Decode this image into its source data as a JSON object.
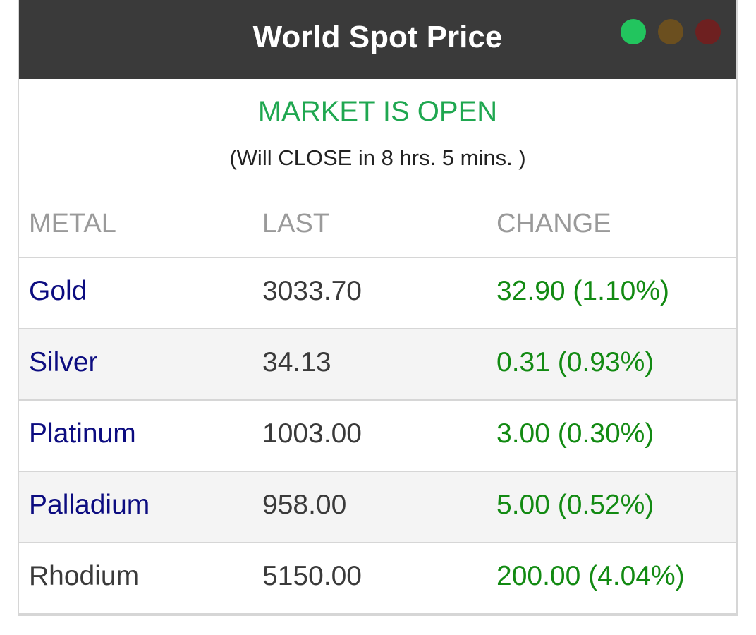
{
  "header": {
    "title": "World Spot Price",
    "status_dots": [
      {
        "name": "green-status-dot",
        "color": "#22c55e"
      },
      {
        "name": "amber-status-dot",
        "color": "#6b4f1f"
      },
      {
        "name": "red-status-dot",
        "color": "#6e2020"
      }
    ]
  },
  "market": {
    "status": "MARKET IS OPEN",
    "countdown": "(Will CLOSE in 8 hrs. 5 mins. )"
  },
  "table": {
    "columns": [
      "METAL",
      "LAST",
      "CHANGE"
    ],
    "rows": [
      {
        "metal": "Gold",
        "last": "3033.70",
        "change": "32.90 (1.10%)",
        "link": true
      },
      {
        "metal": "Silver",
        "last": "34.13",
        "change": "0.31 (0.93%)",
        "link": true
      },
      {
        "metal": "Platinum",
        "last": "1003.00",
        "change": "3.00 (0.30%)",
        "link": true
      },
      {
        "metal": "Palladium",
        "last": "958.00",
        "change": "5.00 (0.52%)",
        "link": true
      },
      {
        "metal": "Rhodium",
        "last": "5150.00",
        "change": "200.00 (4.04%)",
        "link": false
      }
    ]
  },
  "colors": {
    "header_bg": "#3a3a3a",
    "open_green": "#1fa750",
    "change_green": "#128a12",
    "metal_link": "#0c0c80"
  }
}
